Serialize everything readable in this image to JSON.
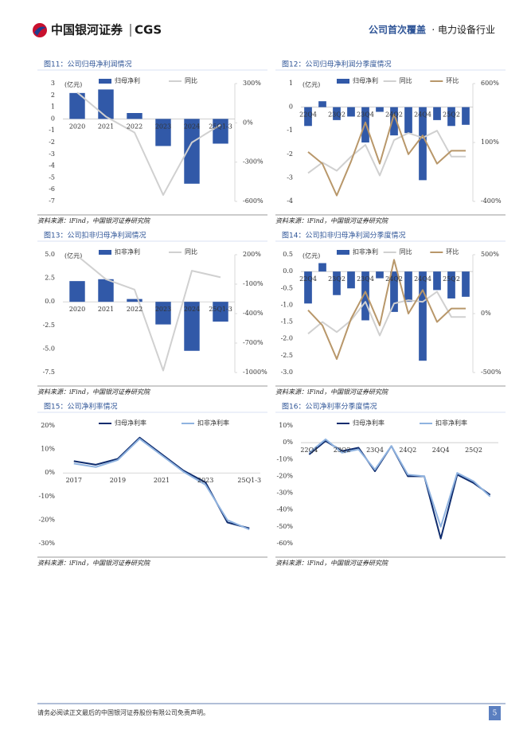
{
  "header": {
    "logo": "中国银河证券",
    "logo_en": "CGS",
    "report_type": "公司首次覆盖",
    "industry": "· 电力设备行业"
  },
  "chart_data": [
    {
      "type": "combo",
      "title": "图11：公司归母净利润情况",
      "unit": "(亿元)",
      "source": "资料来源：iFind，中国银河证券研究院",
      "categories": [
        "2020",
        "2021",
        "2022",
        "2023",
        "2024",
        "25Q1-3"
      ],
      "series": [
        {
          "name": "归母净利",
          "type": "bar",
          "color": "#3159a8",
          "values": [
            2.2,
            2.5,
            0.5,
            -2.3,
            -5.5,
            -2.1
          ]
        },
        {
          "name": "同比",
          "type": "line",
          "axis": "y2",
          "color": "#d0d0d0",
          "values": [
            232,
            48,
            -74,
            -551,
            -150,
            -15
          ]
        }
      ],
      "ylim": [
        -7,
        3
      ],
      "yticks": [
        3,
        2,
        1,
        0,
        -1,
        -2,
        -3,
        -4,
        -5,
        -6,
        -7
      ],
      "y2lim": [
        -600,
        300
      ],
      "y2ticks": [
        {
          "value": 300,
          "label": "300%"
        },
        {
          "value": 0,
          "label": "0%"
        },
        {
          "value": -300,
          "label": "-300%"
        },
        {
          "value": -600,
          "label": "-600%"
        }
      ]
    },
    {
      "type": "combo",
      "title": "图12：公司归母净利润分季度情况",
      "unit": "(亿元)",
      "source": "资料来源：iFind，中国银河证券研究院",
      "categories": [
        "22Q4",
        null,
        "23Q2",
        null,
        "23Q4",
        null,
        "24Q2",
        null,
        "24Q4",
        null,
        "25Q2",
        null
      ],
      "series": [
        {
          "name": "归母净利",
          "type": "bar",
          "color": "#3159a8",
          "values": [
            -0.8,
            0.25,
            -0.55,
            -0.4,
            -1.5,
            -0.2,
            -1.2,
            -1.1,
            -3.1,
            -0.55,
            -0.8,
            -0.75
          ]
        },
        {
          "name": "同比",
          "type": "line",
          "axis": "y2",
          "color": "#d0d0d0",
          "values": [
            -160,
            -70,
            -140,
            -20,
            80,
            -180,
            120,
            180,
            140,
            200,
            -20,
            -20
          ]
        },
        {
          "name": "环比",
          "type": "line",
          "axis": "y2",
          "color": "#b8976a",
          "values": [
            20,
            -80,
            -350,
            -60,
            270,
            -80,
            340,
            0,
            160,
            -80,
            30,
            30
          ]
        }
      ],
      "ylim": [
        -4,
        1
      ],
      "yticks": [
        1,
        0,
        -1,
        -2,
        -3,
        -4
      ],
      "y2lim": [
        -400,
        600
      ],
      "y2ticks": [
        {
          "value": 600,
          "label": "600%"
        },
        {
          "value": 100,
          "label": "100%"
        },
        {
          "value": -400,
          "label": "-400%"
        }
      ]
    },
    {
      "type": "combo",
      "title": "图13：公司扣非归母净利润情况",
      "unit": "(亿元)",
      "source": "资料来源：iFind，中国银河证券研究院",
      "categories": [
        "2020",
        "2021",
        "2022",
        "2023",
        "2024",
        "25Q1-3"
      ],
      "series": [
        {
          "name": "扣非净利",
          "type": "bar",
          "color": "#3159a8",
          "values": [
            2.2,
            2.4,
            0.3,
            -2.4,
            -5.2,
            -2.1
          ]
        },
        {
          "name": "同比",
          "type": "line",
          "axis": "y2",
          "color": "#d0d0d0",
          "values": [
            190,
            -50,
            -155,
            -980,
            37,
            -30
          ]
        }
      ],
      "ylim": [
        -7.5,
        5
      ],
      "yticks": [
        {
          "value": 5,
          "label": "5.0"
        },
        {
          "value": 2.5,
          "label": "2.5"
        },
        {
          "value": 0,
          "label": "0.0"
        },
        {
          "value": -2.5,
          "label": "-2.5"
        },
        {
          "value": -5,
          "label": "-5.0"
        },
        {
          "value": -7.5,
          "label": "-7.5"
        }
      ],
      "y2lim": [
        -1000,
        200
      ],
      "y2ticks": [
        {
          "value": 200,
          "label": "200%"
        },
        {
          "value": -100,
          "label": "-100%"
        },
        {
          "value": -400,
          "label": "-400%"
        },
        {
          "value": -700,
          "label": "-700%"
        },
        {
          "value": -1000,
          "label": "-1000%"
        }
      ]
    },
    {
      "type": "combo",
      "title": "图14：公司扣非归母净利润分季度情况",
      "unit": "(亿元)",
      "source": "资料来源：iFind，中国银河证券研究院",
      "categories": [
        "22Q4",
        null,
        "23Q2",
        null,
        "23Q4",
        null,
        "24Q2",
        null,
        "24Q4",
        null,
        "25Q2",
        null
      ],
      "series": [
        {
          "name": "扣非净利",
          "type": "bar",
          "color": "#3159a8",
          "values": [
            -0.95,
            0.25,
            -0.7,
            -0.5,
            -1.45,
            -0.2,
            -1.2,
            -0.9,
            -2.65,
            -0.55,
            -0.8,
            -0.75
          ]
        },
        {
          "name": "同比",
          "type": "line",
          "axis": "y2",
          "color": "#d0d0d0",
          "values": [
            -171,
            -71,
            -157,
            -57,
            100,
            -186,
            86,
            114,
            100,
            186,
            -29,
            -29
          ]
        },
        {
          "name": "环比",
          "type": "line",
          "axis": "y2",
          "color": "#b8976a",
          "values": [
            29,
            -100,
            -386,
            -43,
            186,
            -100,
            457,
            0,
            200,
            -71,
            43,
            43
          ]
        }
      ],
      "ylim": [
        -3,
        0.5
      ],
      "yticks": [
        0.5,
        {
          "value": 0,
          "label": "0.0"
        },
        -0.5,
        {
          "value": -1,
          "label": "-1.0"
        },
        -1.5,
        {
          "value": -2,
          "label": "-2.0"
        },
        -2.5,
        {
          "value": -3,
          "label": "-3.0"
        }
      ],
      "y2lim": [
        -500,
        500
      ],
      "y2ticks": [
        {
          "value": 500,
          "label": "500%"
        },
        {
          "value": 0,
          "label": "0%"
        },
        {
          "value": -500,
          "label": "-500%"
        }
      ]
    },
    {
      "type": "line",
      "title": "图15：公司净利率情况",
      "source": "资料来源：iFind，中国银河证券研究院",
      "categories": [
        "2017",
        null,
        "2019",
        null,
        "2021",
        null,
        "2023",
        null,
        "25Q1-3"
      ],
      "series": [
        {
          "name": "归母净利率",
          "type": "line",
          "color": "#0f2c6e",
          "values": [
            5,
            3.5,
            6,
            15,
            8,
            1,
            -4,
            -21,
            -23.5
          ]
        },
        {
          "name": "扣非净利率",
          "type": "line",
          "color": "#8fb3e0",
          "values": [
            4,
            2.5,
            5.5,
            14.5,
            7.5,
            0.5,
            -5,
            -20,
            -24
          ]
        }
      ],
      "ylim": [
        -30,
        20
      ],
      "yticks": [
        {
          "value": 20,
          "label": "20%"
        },
        {
          "value": 10,
          "label": "10%"
        },
        {
          "value": 0,
          "label": "0%"
        },
        {
          "value": -10,
          "label": "-10%"
        },
        {
          "value": -20,
          "label": "-20%"
        },
        {
          "value": -30,
          "label": "-30%"
        }
      ]
    },
    {
      "type": "line",
      "title": "图16：公司净利率分季度情况",
      "source": "资料来源：iFind，中国银河证券研究院",
      "categories": [
        "22Q4",
        null,
        "23Q2",
        null,
        "23Q4",
        null,
        "24Q2",
        null,
        "24Q4",
        null,
        "25Q2",
        null
      ],
      "series": [
        {
          "name": "归母净利率",
          "type": "line",
          "color": "#0f2c6e",
          "values": [
            -7,
            1,
            -5,
            -3,
            -17,
            -2,
            -20,
            -20,
            -57,
            -19,
            -24,
            -31
          ]
        },
        {
          "name": "扣非净利率",
          "type": "line",
          "color": "#8fb3e0",
          "values": [
            -6,
            2,
            -6,
            -4,
            -16,
            -2,
            -19,
            -20,
            -50,
            -18,
            -23,
            -32
          ]
        }
      ],
      "ylim": [
        -60,
        10
      ],
      "yticks": [
        {
          "value": 10,
          "label": "10%"
        },
        {
          "value": 0,
          "label": "0%"
        },
        {
          "value": -10,
          "label": "-10%"
        },
        {
          "value": -20,
          "label": "-20%"
        },
        {
          "value": -30,
          "label": "-30%"
        },
        {
          "value": -40,
          "label": "-40%"
        },
        {
          "value": -50,
          "label": "-50%"
        },
        {
          "value": -60,
          "label": "-60%"
        }
      ]
    }
  ],
  "footer": {
    "disclaimer": "请务必阅读正文最后的中国银河证券股份有限公司免责声明。",
    "page": "5"
  }
}
